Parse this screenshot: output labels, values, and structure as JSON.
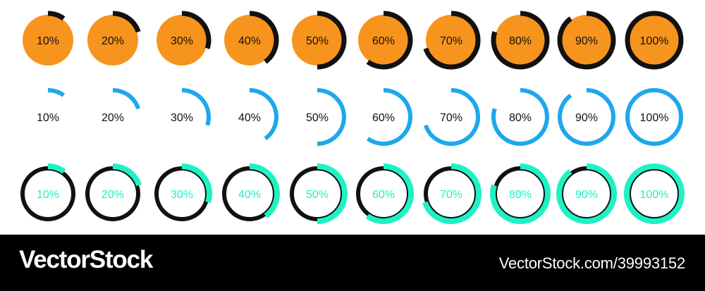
{
  "rows": [
    {
      "style": "solid-orange-with-black-ring",
      "fill_color": "#F7941D",
      "arc_color": "#111111",
      "text_color": "#111111",
      "items": [
        {
          "label": "10%",
          "value": 0.1
        },
        {
          "label": "20%",
          "value": 0.2
        },
        {
          "label": "30%",
          "value": 0.3
        },
        {
          "label": "40%",
          "value": 0.4
        },
        {
          "label": "50%",
          "value": 0.5
        },
        {
          "label": "60%",
          "value": 0.6
        },
        {
          "label": "70%",
          "value": 0.7
        },
        {
          "label": "80%",
          "value": 0.8
        },
        {
          "label": "90%",
          "value": 0.9
        },
        {
          "label": "100%",
          "value": 1.0
        }
      ]
    },
    {
      "style": "blue-arc-only",
      "arc_color": "#1EA7EC",
      "text_color": "#111111",
      "items": [
        {
          "label": "10%",
          "value": 0.1
        },
        {
          "label": "20%",
          "value": 0.2
        },
        {
          "label": "30%",
          "value": 0.3
        },
        {
          "label": "40%",
          "value": 0.4
        },
        {
          "label": "50%",
          "value": 0.5
        },
        {
          "label": "60%",
          "value": 0.6
        },
        {
          "label": "70%",
          "value": 0.7
        },
        {
          "label": "80%",
          "value": 0.8
        },
        {
          "label": "90%",
          "value": 0.9
        },
        {
          "label": "100%",
          "value": 1.0
        }
      ]
    },
    {
      "style": "black-track-teal-arc",
      "track_color": "#111111",
      "arc_color": "#1EF2C2",
      "text_color": "#1EF2C2",
      "items": [
        {
          "label": "10%",
          "value": 0.1
        },
        {
          "label": "20%",
          "value": 0.2
        },
        {
          "label": "30%",
          "value": 0.3
        },
        {
          "label": "40%",
          "value": 0.4
        },
        {
          "label": "50%",
          "value": 0.5
        },
        {
          "label": "60%",
          "value": 0.6
        },
        {
          "label": "70%",
          "value": 0.7
        },
        {
          "label": "80%",
          "value": 0.8
        },
        {
          "label": "90%",
          "value": 0.9
        },
        {
          "label": "100%",
          "value": 1.0
        }
      ]
    }
  ],
  "footer": {
    "logo_text": "VectorStock",
    "right_text": "VectorStock.com/39993152",
    "background": "#000000",
    "text_color": "#FFFFFF"
  }
}
